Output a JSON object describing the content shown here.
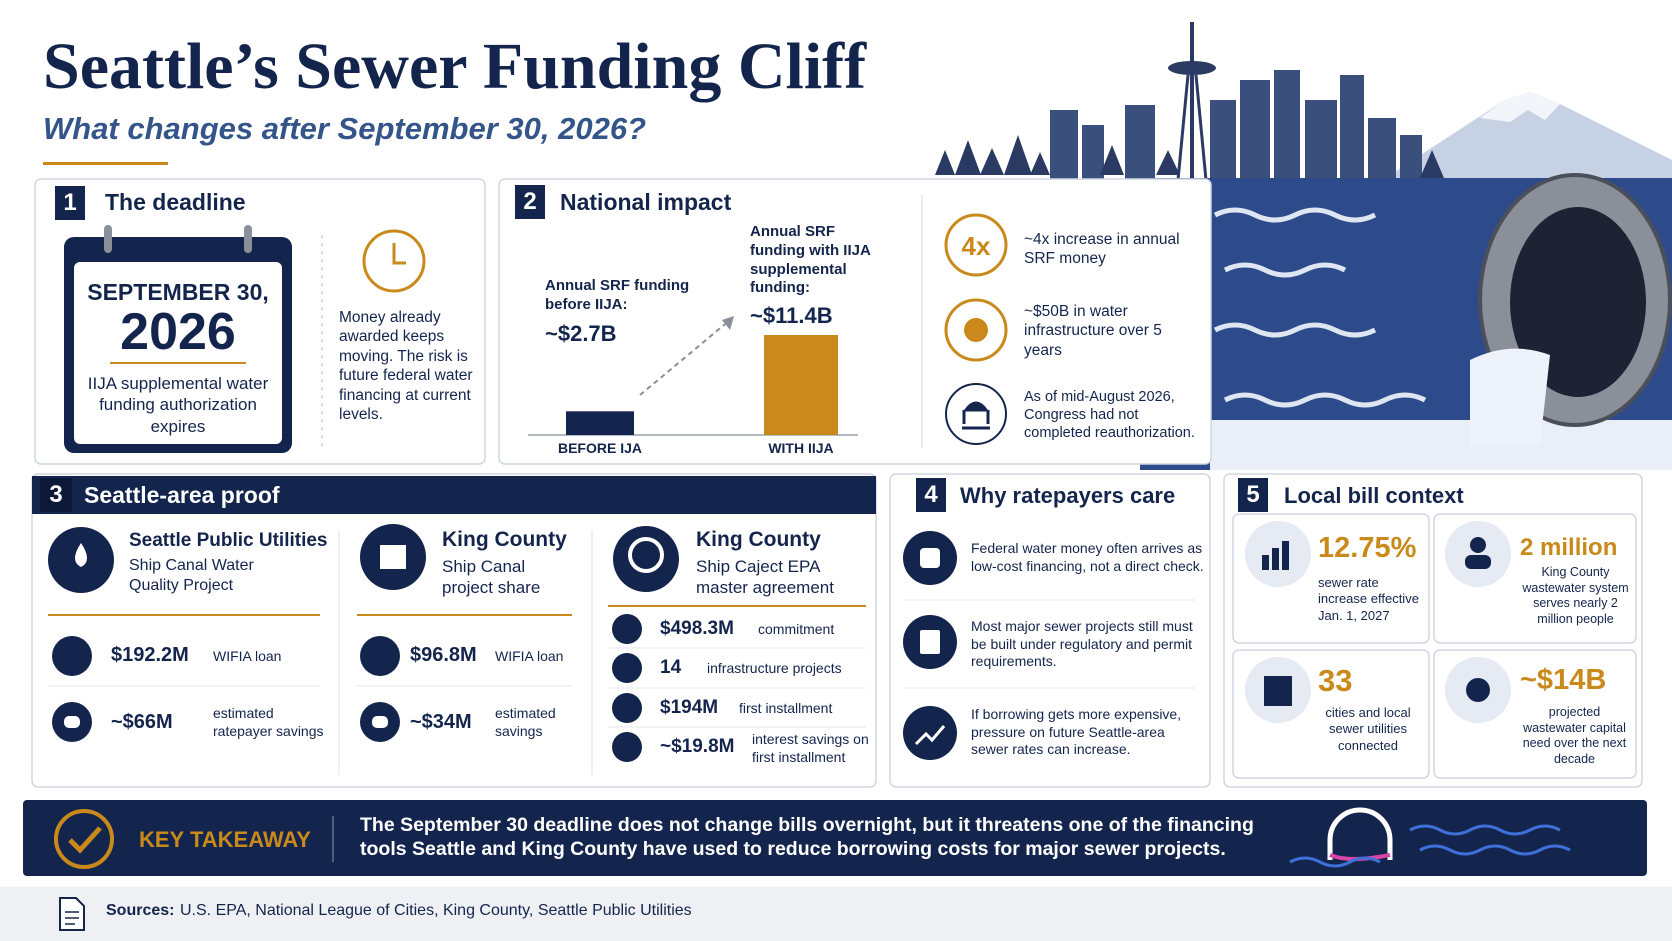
{
  "header": {
    "title": "Seattle’s Sewer Funding Cliff",
    "subtitle": "What changes after September 30, 2026?"
  },
  "deadline": {
    "number": "1",
    "title": "The deadline",
    "calendar_date": "SEPTEMBER 30,",
    "calendar_year": "2026",
    "calendar_note": "IIJA supplemental water funding authorization expires",
    "note": "Money already awarded keeps moving. The risk is future federal water financing at current levels."
  },
  "national_impact": {
    "number": "2",
    "title": "National impact",
    "bars": [
      {
        "label": "BEFORE IJA",
        "caption": "Annual SRF funding before IIJA:",
        "value": 2.7,
        "value_label": "~$2.7B",
        "color": "#14254d"
      },
      {
        "label": "WITH IIJA",
        "caption": "Annual SRF funding with IIJA supplemental funding:",
        "value": 11.4,
        "value_label": "~$11.4B",
        "color": "#c98a1b"
      }
    ],
    "facts": [
      {
        "badge": "4x",
        "text": "~4x increase in annual SRF money"
      },
      {
        "text": "~$50B in water infrastructure over 5 years"
      },
      {
        "text": "As of mid-August 2026, Congress had not completed reauthorization."
      }
    ]
  },
  "seattle_proof": {
    "number": "3",
    "title": "Seattle-area proof",
    "columns": [
      {
        "org": "Seattle Public Utilities",
        "project": "Ship Canal Water Quality Project",
        "rows": [
          {
            "amount": "$192.2M",
            "label": "WIFIA loan"
          },
          {
            "amount": "~$66M",
            "label": "estimated ratepayer savings"
          }
        ]
      },
      {
        "org": "King County",
        "project": "Ship Canal project share",
        "rows": [
          {
            "amount": "$96.8M",
            "label": "WIFIA loan"
          },
          {
            "amount": "~$34M",
            "label": "estimated savings"
          }
        ]
      },
      {
        "org": "King County",
        "project": "Ship Caject EPA master agreement",
        "rows": [
          {
            "amount": "$498.3M",
            "label": "commitment"
          },
          {
            "amount": "14",
            "label": "infrastructure projects"
          },
          {
            "amount": "$194M",
            "label": "first installment"
          },
          {
            "amount": "~$19.8M",
            "label": "interest savings on first installment"
          }
        ]
      }
    ]
  },
  "ratepayers": {
    "number": "4",
    "title": "Why ratepayers care",
    "items": [
      "Federal water money often arrives as low-cost financing, not a direct check.",
      "Most major sewer projects still must be built under regulatory and permit requirements.",
      "If borrowing gets more expensive, pressure on future Seattle-area sewer rates can increase."
    ]
  },
  "local_bill": {
    "number": "5",
    "title": "Local bill context",
    "stats": [
      {
        "value": "12.75%",
        "text": "sewer rate increase effective Jan. 1, 2027"
      },
      {
        "value": "2 million",
        "text": "King County wastewater system serves nearly 2 million people"
      },
      {
        "value": "33",
        "text": "cities and local sewer utilities connected"
      },
      {
        "value": "~$14B",
        "text": "projected wastewater capital need over the next decade"
      }
    ]
  },
  "takeaway": {
    "label": "KEY TAKEAWAY",
    "text": "The September 30 deadline does not change bills overnight, but it threatens one of the financing tools Seattle and King County have used to reduce borrowing costs for major sewer projects."
  },
  "sources": {
    "label": "Sources:",
    "text": "U.S. EPA, National League of Cities, King County, Seattle Public Utilities"
  }
}
